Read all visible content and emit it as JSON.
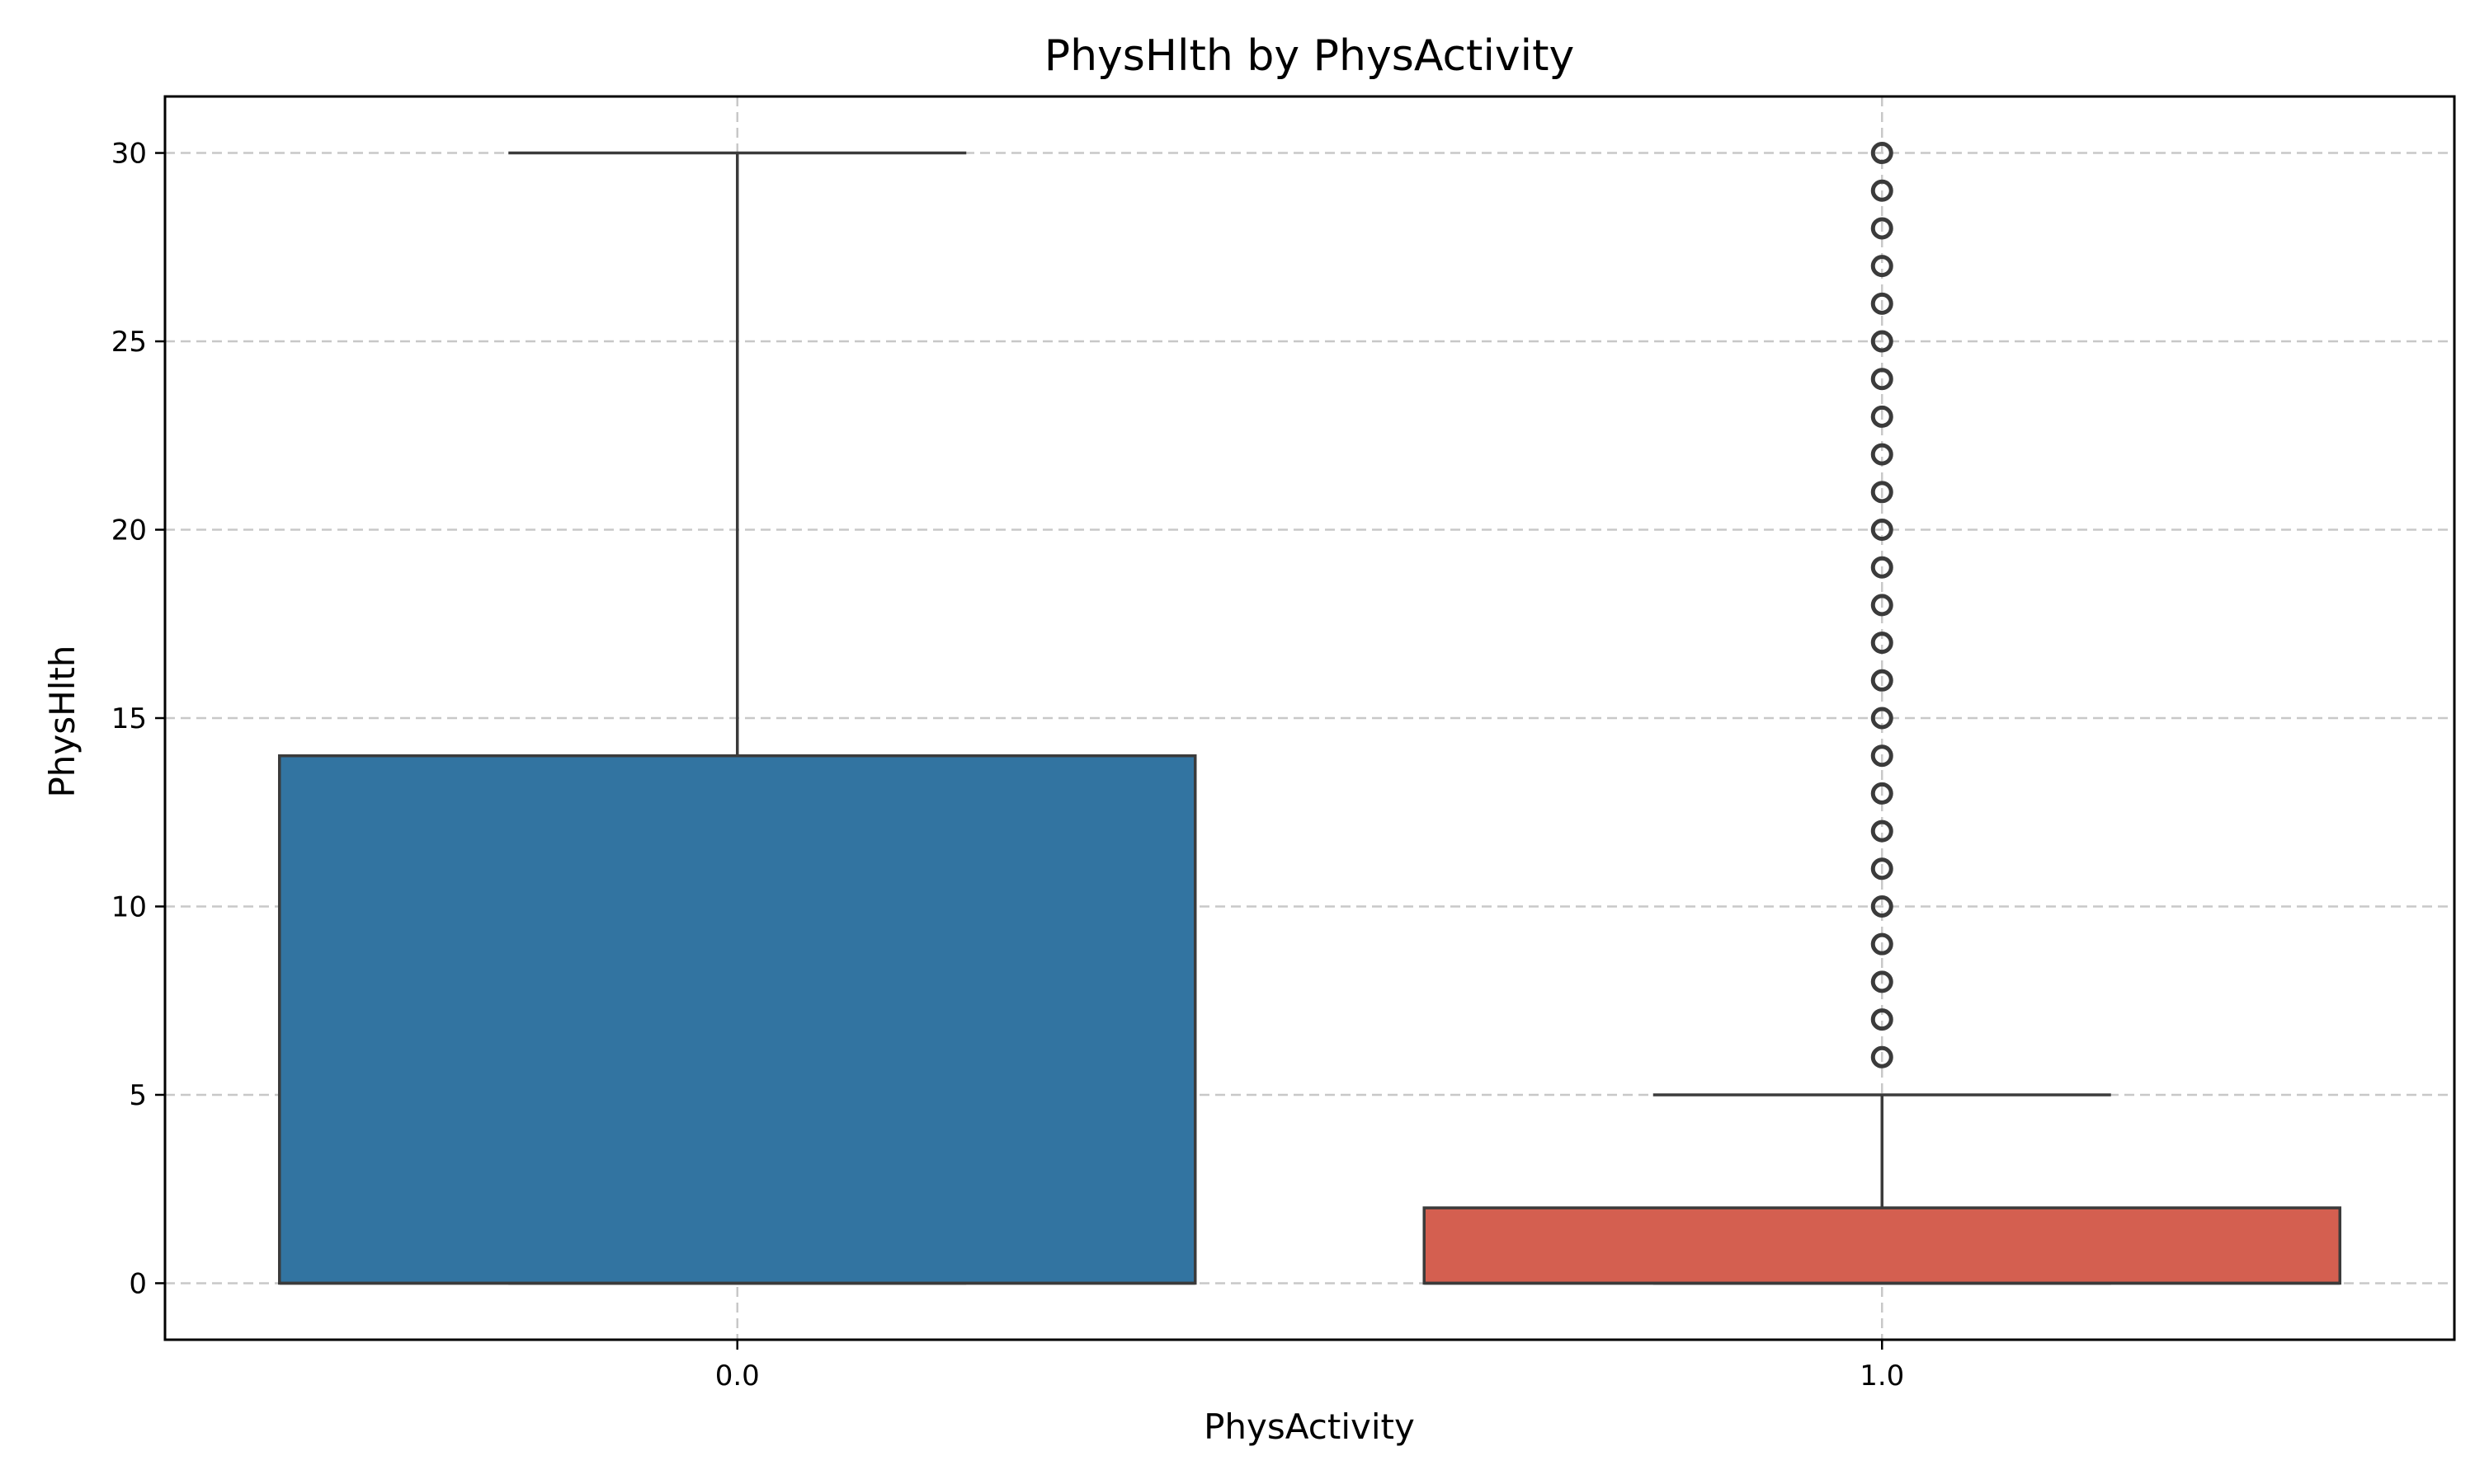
{
  "chart_data": {
    "type": "box",
    "title": "PhysHlth by PhysActivity",
    "xlabel": "PhysActivity",
    "ylabel": "PhysHlth",
    "categories": [
      "0.0",
      "1.0"
    ],
    "ylim": [
      -1.5,
      31.5
    ],
    "yticks": [
      0,
      5,
      10,
      15,
      20,
      25,
      30
    ],
    "grid": true,
    "boxes": [
      {
        "category": "0.0",
        "q1": 0,
        "median": 0,
        "q3": 14,
        "whisker_low": 0,
        "whisker_high": 30,
        "fliers": [],
        "color": "#3274a1"
      },
      {
        "category": "1.0",
        "q1": 0,
        "median": 0,
        "q3": 2,
        "whisker_low": 0,
        "whisker_high": 5,
        "fliers": [
          6,
          7,
          8,
          9,
          10,
          11,
          12,
          13,
          14,
          15,
          16,
          17,
          18,
          19,
          20,
          21,
          22,
          23,
          24,
          25,
          26,
          27,
          28,
          29,
          30
        ],
        "color": "#d45f50"
      }
    ]
  }
}
